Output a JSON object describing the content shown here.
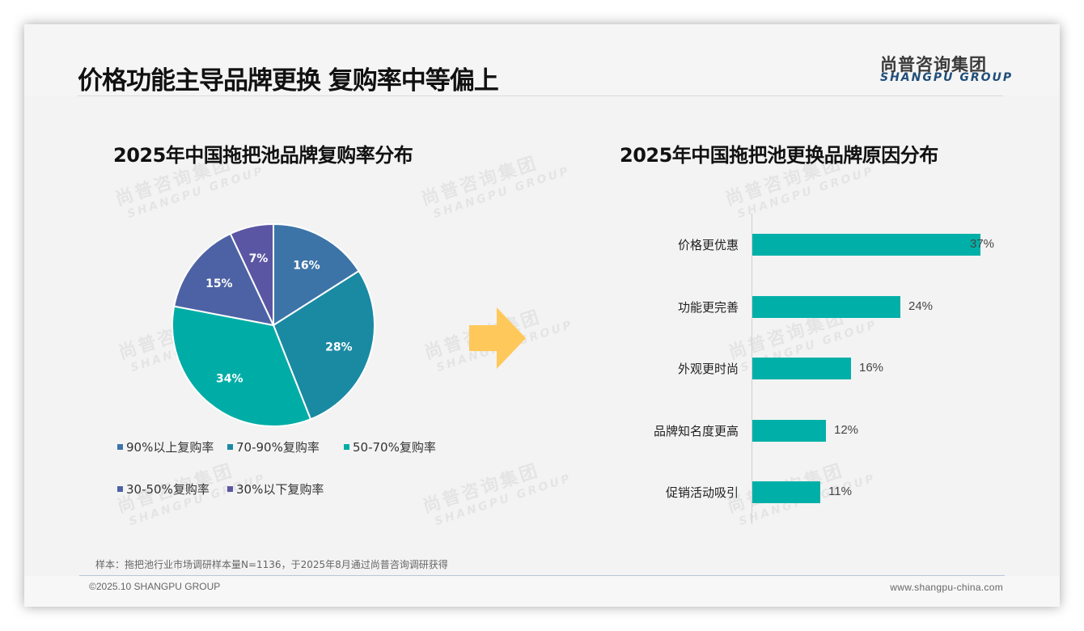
{
  "header": {
    "title": "价格功能主导品牌更换 复购率中等偏上",
    "logo_cn": "尚普咨询集团",
    "logo_en": "SHANGPU GROUP"
  },
  "watermark": {
    "cn": "尚普咨询集团",
    "en": "SHANGPU GROUP"
  },
  "left_chart": {
    "title": "2025年中国拖把池品牌复购率分布"
  },
  "right_chart": {
    "title": "2025年中国拖把池更换品牌原因分布"
  },
  "arrow": {
    "icon": "right-arrow-icon",
    "color": "#ffc85a"
  },
  "chart_data": [
    {
      "type": "pie",
      "title": "2025年中国拖把池品牌复购率分布",
      "categories": [
        "90%以上复购率",
        "70-90%复购率",
        "50-70%复购率",
        "30-50%复购率",
        "30%以下复购率"
      ],
      "values": [
        16,
        28,
        34,
        15,
        7
      ],
      "labels": [
        "16%",
        "28%",
        "34%",
        "15%",
        "7%"
      ],
      "colors": [
        "#3d74a8",
        "#1a8aa3",
        "#00ada6",
        "#4c62a4",
        "#5b56a3"
      ],
      "legend_position": "bottom",
      "start_angle": "12 o'clock, clockwise"
    },
    {
      "type": "bar",
      "orientation": "horizontal",
      "title": "2025年中国拖把池更换品牌原因分布",
      "categories": [
        "价格更优惠",
        "功能更完善",
        "外观更时尚",
        "品牌知名度更高",
        "促销活动吸引"
      ],
      "values": [
        37,
        24,
        16,
        12,
        11
      ],
      "labels": [
        "37%",
        "24%",
        "16%",
        "12%",
        "11%"
      ],
      "color": "#00b0a8",
      "xlabel": "",
      "ylabel": "",
      "grid": false
    }
  ],
  "legend": [
    {
      "label": "90%以上复购率",
      "color": "#3d74a8"
    },
    {
      "label": "70-90%复购率",
      "color": "#1a8aa3"
    },
    {
      "label": "50-70%复购率",
      "color": "#00ada6"
    },
    {
      "label": "30-50%复购率",
      "color": "#4c62a4"
    },
    {
      "label": "30%以下复购率",
      "color": "#5b56a3"
    }
  ],
  "note": "样本：拖把池行业市场调研样本量N=1136，于2025年8月通过尚普咨询调研获得",
  "footer": {
    "copyright": "©2025.10 SHANGPU GROUP",
    "website": "www.shangpu-china.com"
  }
}
